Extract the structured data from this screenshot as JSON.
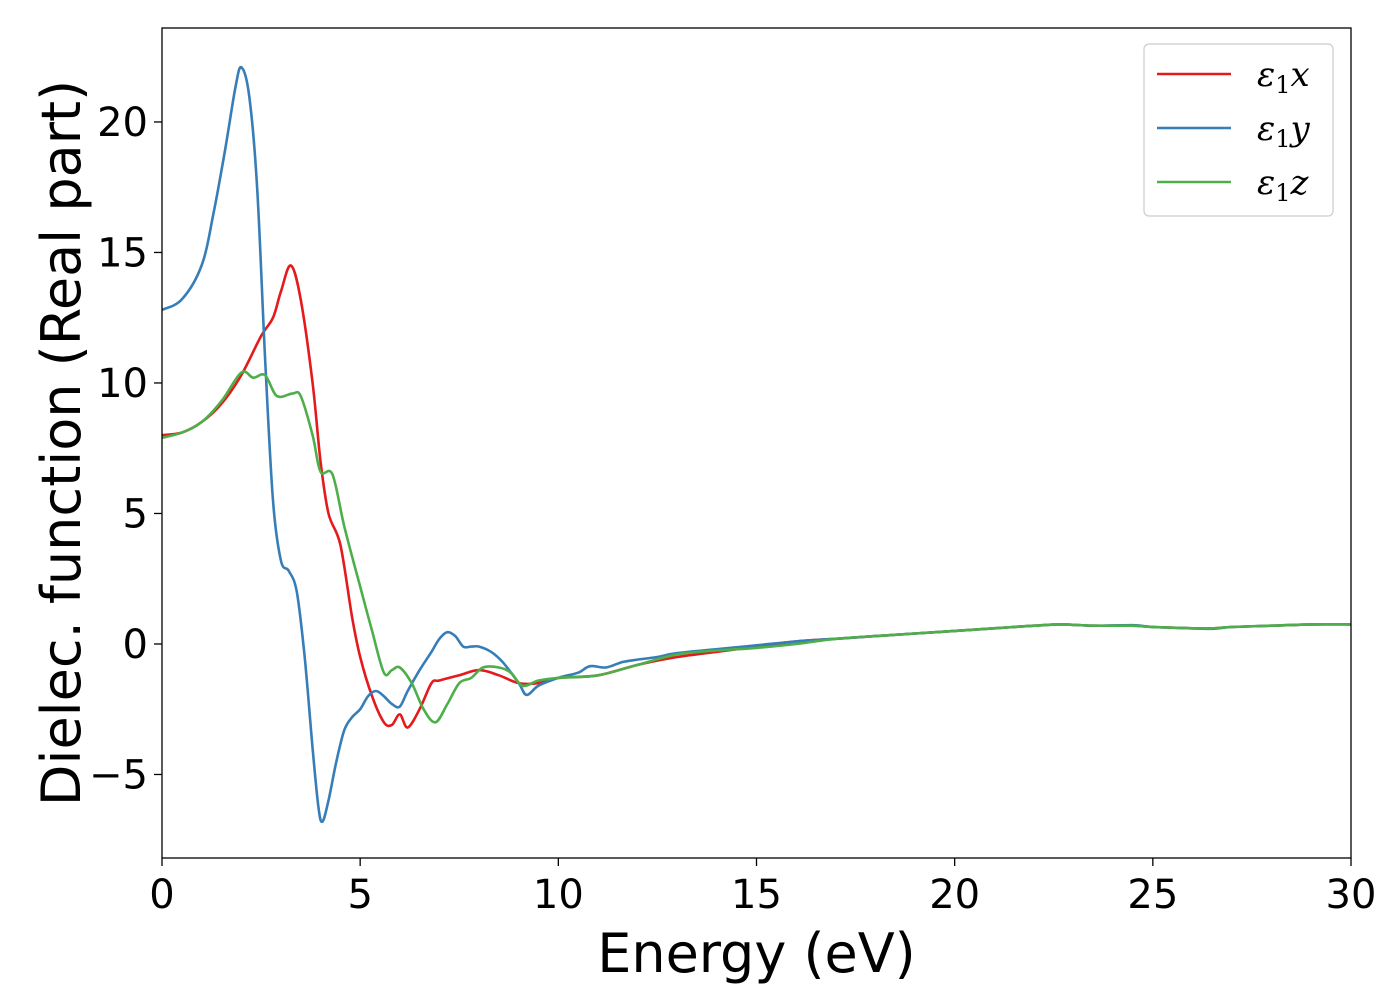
{
  "chart_data": {
    "type": "line",
    "xlabel": "Energy (eV)",
    "ylabel": "Dielec. function (Real part)",
    "xlim": [
      0,
      30
    ],
    "ylim": [
      -8.2,
      23.6
    ],
    "xticks": [
      0,
      5,
      10,
      15,
      20,
      25,
      30
    ],
    "yticks": [
      -5,
      0,
      5,
      10,
      15,
      20
    ],
    "xtick_labels": [
      "0",
      "5",
      "10",
      "15",
      "20",
      "25",
      "30"
    ],
    "ytick_labels": [
      "−5",
      "0",
      "5",
      "10",
      "15",
      "20"
    ],
    "grid": false,
    "legend_position": "top-right",
    "series": [
      {
        "name": "ε₁x",
        "legend": {
          "symbol": "ε",
          "sub": "1",
          "tail": "x"
        },
        "color": "#e41a1c",
        "points": [
          [
            0,
            8.0
          ],
          [
            0.5,
            8.1
          ],
          [
            1.0,
            8.5
          ],
          [
            1.5,
            9.2
          ],
          [
            2.0,
            10.3
          ],
          [
            2.5,
            11.8
          ],
          [
            2.8,
            12.5
          ],
          [
            3.0,
            13.5
          ],
          [
            3.25,
            14.5
          ],
          [
            3.5,
            13.2
          ],
          [
            3.8,
            10.0
          ],
          [
            4.0,
            7.0
          ],
          [
            4.2,
            5.0
          ],
          [
            4.5,
            3.8
          ],
          [
            4.8,
            1.0
          ],
          [
            5.0,
            -0.5
          ],
          [
            5.3,
            -2.0
          ],
          [
            5.6,
            -3.0
          ],
          [
            5.8,
            -3.1
          ],
          [
            6.0,
            -2.7
          ],
          [
            6.2,
            -3.2
          ],
          [
            6.5,
            -2.5
          ],
          [
            6.8,
            -1.5
          ],
          [
            7.0,
            -1.4
          ],
          [
            7.5,
            -1.2
          ],
          [
            8.0,
            -1.0
          ],
          [
            8.5,
            -1.2
          ],
          [
            9.0,
            -1.5
          ],
          [
            9.5,
            -1.5
          ],
          [
            10,
            -1.3
          ],
          [
            11,
            -1.2
          ],
          [
            12,
            -0.8
          ],
          [
            13,
            -0.5
          ],
          [
            14,
            -0.3
          ],
          [
            15,
            -0.1
          ],
          [
            16,
            0.1
          ],
          [
            17,
            0.2
          ],
          [
            18,
            0.3
          ],
          [
            19,
            0.4
          ],
          [
            20,
            0.5
          ],
          [
            21,
            0.6
          ],
          [
            22,
            0.7
          ],
          [
            22.7,
            0.75
          ],
          [
            23.5,
            0.7
          ],
          [
            24.5,
            0.7
          ],
          [
            25,
            0.65
          ],
          [
            26,
            0.6
          ],
          [
            26.5,
            0.6
          ],
          [
            27,
            0.65
          ],
          [
            28,
            0.7
          ],
          [
            29,
            0.75
          ],
          [
            30,
            0.75
          ]
        ]
      },
      {
        "name": "ε₁y",
        "legend": {
          "symbol": "ε",
          "sub": "1",
          "tail": "y"
        },
        "color": "#377eb8",
        "points": [
          [
            0,
            12.8
          ],
          [
            0.5,
            13.2
          ],
          [
            1.0,
            14.5
          ],
          [
            1.3,
            16.5
          ],
          [
            1.6,
            19.0
          ],
          [
            1.85,
            21.3
          ],
          [
            2.0,
            22.1
          ],
          [
            2.2,
            21.0
          ],
          [
            2.4,
            17.5
          ],
          [
            2.6,
            11.0
          ],
          [
            2.8,
            5.5
          ],
          [
            3.0,
            3.2
          ],
          [
            3.2,
            2.8
          ],
          [
            3.4,
            2.0
          ],
          [
            3.6,
            -0.5
          ],
          [
            3.8,
            -4.0
          ],
          [
            3.95,
            -6.3
          ],
          [
            4.05,
            -6.8
          ],
          [
            4.2,
            -6.0
          ],
          [
            4.4,
            -4.5
          ],
          [
            4.6,
            -3.3
          ],
          [
            4.8,
            -2.8
          ],
          [
            5.0,
            -2.5
          ],
          [
            5.2,
            -2.0
          ],
          [
            5.4,
            -1.8
          ],
          [
            5.6,
            -2.0
          ],
          [
            5.8,
            -2.3
          ],
          [
            6.0,
            -2.4
          ],
          [
            6.2,
            -1.8
          ],
          [
            6.5,
            -1.0
          ],
          [
            6.8,
            -0.3
          ],
          [
            7.0,
            0.2
          ],
          [
            7.2,
            0.45
          ],
          [
            7.4,
            0.3
          ],
          [
            7.6,
            -0.1
          ],
          [
            7.8,
            -0.1
          ],
          [
            8.0,
            -0.1
          ],
          [
            8.3,
            -0.3
          ],
          [
            8.6,
            -0.7
          ],
          [
            9.0,
            -1.5
          ],
          [
            9.2,
            -1.95
          ],
          [
            9.5,
            -1.6
          ],
          [
            10,
            -1.3
          ],
          [
            10.5,
            -1.1
          ],
          [
            10.8,
            -0.85
          ],
          [
            11.2,
            -0.9
          ],
          [
            11.6,
            -0.7
          ],
          [
            12,
            -0.6
          ],
          [
            12.5,
            -0.5
          ],
          [
            13,
            -0.35
          ],
          [
            14,
            -0.2
          ],
          [
            15,
            -0.05
          ],
          [
            16,
            0.1
          ],
          [
            17,
            0.2
          ],
          [
            18,
            0.3
          ],
          [
            19,
            0.4
          ],
          [
            20,
            0.5
          ],
          [
            21,
            0.6
          ],
          [
            22,
            0.7
          ],
          [
            22.7,
            0.75
          ],
          [
            23.5,
            0.7
          ],
          [
            24.5,
            0.72
          ],
          [
            25,
            0.65
          ],
          [
            26,
            0.6
          ],
          [
            26.5,
            0.58
          ],
          [
            27,
            0.65
          ],
          [
            28,
            0.7
          ],
          [
            29,
            0.75
          ],
          [
            30,
            0.75
          ]
        ]
      },
      {
        "name": "ε₁z",
        "legend": {
          "symbol": "ε",
          "sub": "1",
          "tail": "z"
        },
        "color": "#4daf4a",
        "points": [
          [
            0,
            7.9
          ],
          [
            0.5,
            8.1
          ],
          [
            1.0,
            8.5
          ],
          [
            1.5,
            9.3
          ],
          [
            2.0,
            10.4
          ],
          [
            2.3,
            10.2
          ],
          [
            2.6,
            10.3
          ],
          [
            2.9,
            9.5
          ],
          [
            3.3,
            9.6
          ],
          [
            3.5,
            9.5
          ],
          [
            3.8,
            8.0
          ],
          [
            4.0,
            6.6
          ],
          [
            4.3,
            6.5
          ],
          [
            4.6,
            4.5
          ],
          [
            5.0,
            2.2
          ],
          [
            5.3,
            0.5
          ],
          [
            5.6,
            -1.1
          ],
          [
            5.8,
            -1.0
          ],
          [
            6.0,
            -0.9
          ],
          [
            6.3,
            -1.5
          ],
          [
            6.6,
            -2.5
          ],
          [
            6.9,
            -3.0
          ],
          [
            7.2,
            -2.3
          ],
          [
            7.5,
            -1.5
          ],
          [
            7.8,
            -1.3
          ],
          [
            8.1,
            -0.9
          ],
          [
            8.5,
            -0.9
          ],
          [
            8.8,
            -1.1
          ],
          [
            9.1,
            -1.6
          ],
          [
            9.5,
            -1.4
          ],
          [
            10,
            -1.3
          ],
          [
            11,
            -1.2
          ],
          [
            12,
            -0.8
          ],
          [
            13,
            -0.4
          ],
          [
            14,
            -0.25
          ],
          [
            15,
            -0.15
          ],
          [
            16,
            0.0
          ],
          [
            17,
            0.2
          ],
          [
            18,
            0.3
          ],
          [
            19,
            0.4
          ],
          [
            20,
            0.5
          ],
          [
            21,
            0.6
          ],
          [
            22,
            0.7
          ],
          [
            22.7,
            0.75
          ],
          [
            23.5,
            0.7
          ],
          [
            24.5,
            0.7
          ],
          [
            25,
            0.65
          ],
          [
            26,
            0.6
          ],
          [
            26.5,
            0.6
          ],
          [
            27,
            0.65
          ],
          [
            28,
            0.7
          ],
          [
            29,
            0.75
          ],
          [
            30,
            0.75
          ]
        ]
      }
    ]
  }
}
